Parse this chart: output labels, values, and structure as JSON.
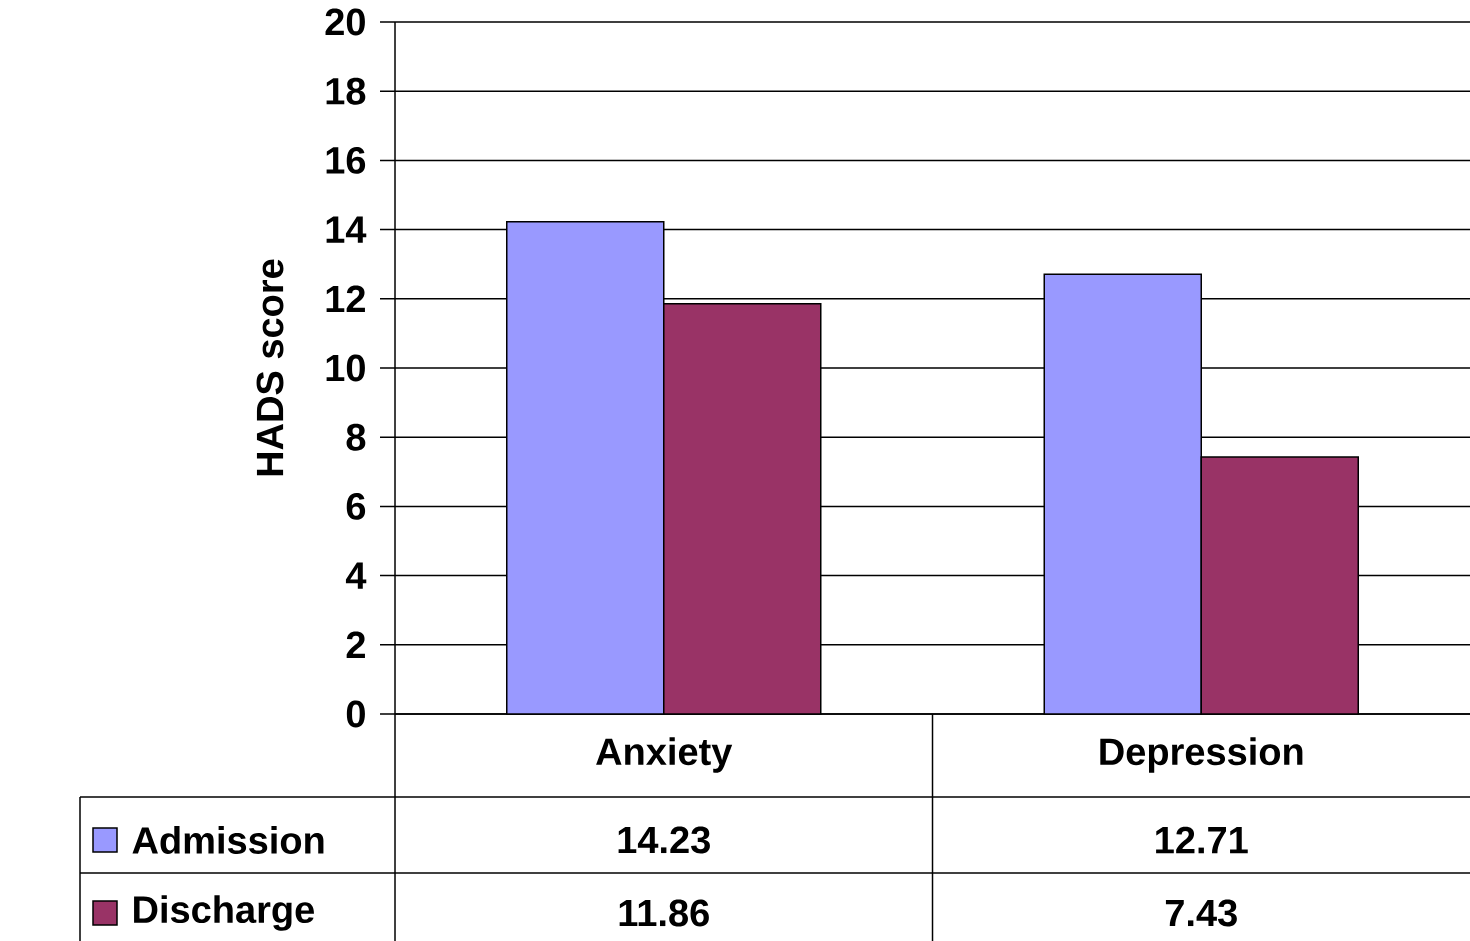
{
  "chart_data": {
    "type": "bar",
    "ylabel": "HADS score",
    "categories": [
      "Anxiety",
      "Depression"
    ],
    "series": [
      {
        "name": "Admission",
        "color": "#9999ff",
        "values": [
          14.23,
          12.71
        ]
      },
      {
        "name": "Discharge",
        "color": "#993366",
        "values": [
          11.86,
          7.43
        ]
      }
    ],
    "ylim": [
      0,
      20
    ],
    "yticks": [
      0,
      2,
      4,
      6,
      8,
      10,
      12,
      14,
      16,
      18,
      20
    ],
    "grid": "y",
    "data_labels": true,
    "legend": "bottom"
  }
}
